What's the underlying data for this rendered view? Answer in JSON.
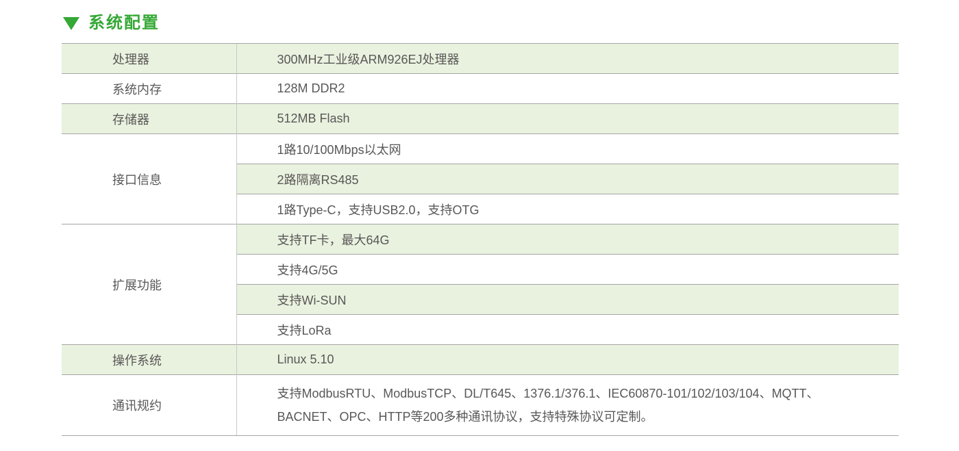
{
  "colors": {
    "accent_green": "#35a835",
    "row_green": "#e9f2df",
    "border_horizontal": "#a5a5a5",
    "border_vertical": "#c8c8c8",
    "text_gray": "#595757"
  },
  "icons": {
    "section_marker": "triangle-down"
  },
  "header": {
    "title": "系统配置"
  },
  "spec_table": {
    "sections": [
      {
        "label": "处理器",
        "items": [
          "300MHz工业级ARM926EJ处理器"
        ]
      },
      {
        "label": "系统内存",
        "items": [
          "128M DDR2"
        ]
      },
      {
        "label": "存储器",
        "items": [
          "512MB Flash"
        ]
      },
      {
        "label": "接口信息",
        "items": [
          "1路10/100Mbps以太网",
          "2路隔离RS485",
          "1路Type-C，支持USB2.0，支持OTG"
        ]
      },
      {
        "label": "扩展功能",
        "items": [
          "支持TF卡，最大64G",
          "支持4G/5G",
          "支持Wi-SUN",
          "支持LoRa"
        ]
      },
      {
        "label": "操作系统",
        "items": [
          "Linux 5.10"
        ]
      },
      {
        "label": "通讯规约",
        "items": [
          "支持ModbusRTU、ModbusTCP、DL/T645、1376.1/376.1、IEC60870-101/102/103/104、MQTT、BACNET、OPC、HTTP等200多种通讯协议，支持特殊协议可定制。"
        ]
      }
    ]
  }
}
